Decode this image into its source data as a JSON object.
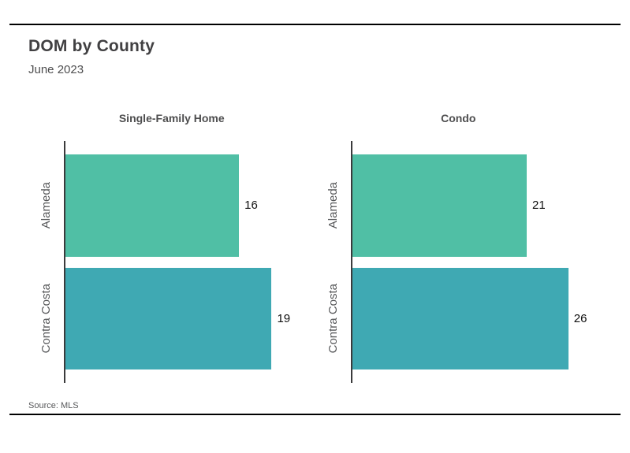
{
  "header": {
    "title": "DOM by County",
    "subtitle": "June 2023"
  },
  "footer": {
    "source": "Source: MLS"
  },
  "colors": {
    "bar_palette": [
      "#50BFA5",
      "#3FA9B3"
    ],
    "axis": "#3b3b3c",
    "rule": "#000000",
    "title_text": "#414042",
    "category_text": "#58595b",
    "value_text": "#111111"
  },
  "chart_data": [
    {
      "type": "bar",
      "orientation": "horizontal",
      "title": "Single-Family Home",
      "categories": [
        "Alameda",
        "Contra Costa"
      ],
      "values": [
        16,
        19
      ],
      "value_labels": [
        "16",
        "19"
      ],
      "xlim": [
        0,
        23
      ],
      "grid": false,
      "legend": "none"
    },
    {
      "type": "bar",
      "orientation": "horizontal",
      "title": "Condo",
      "categories": [
        "Alameda",
        "Contra Costa"
      ],
      "values": [
        21,
        26
      ],
      "value_labels": [
        "21",
        "26"
      ],
      "xlim": [
        0,
        30
      ],
      "grid": false,
      "legend": "none"
    }
  ]
}
